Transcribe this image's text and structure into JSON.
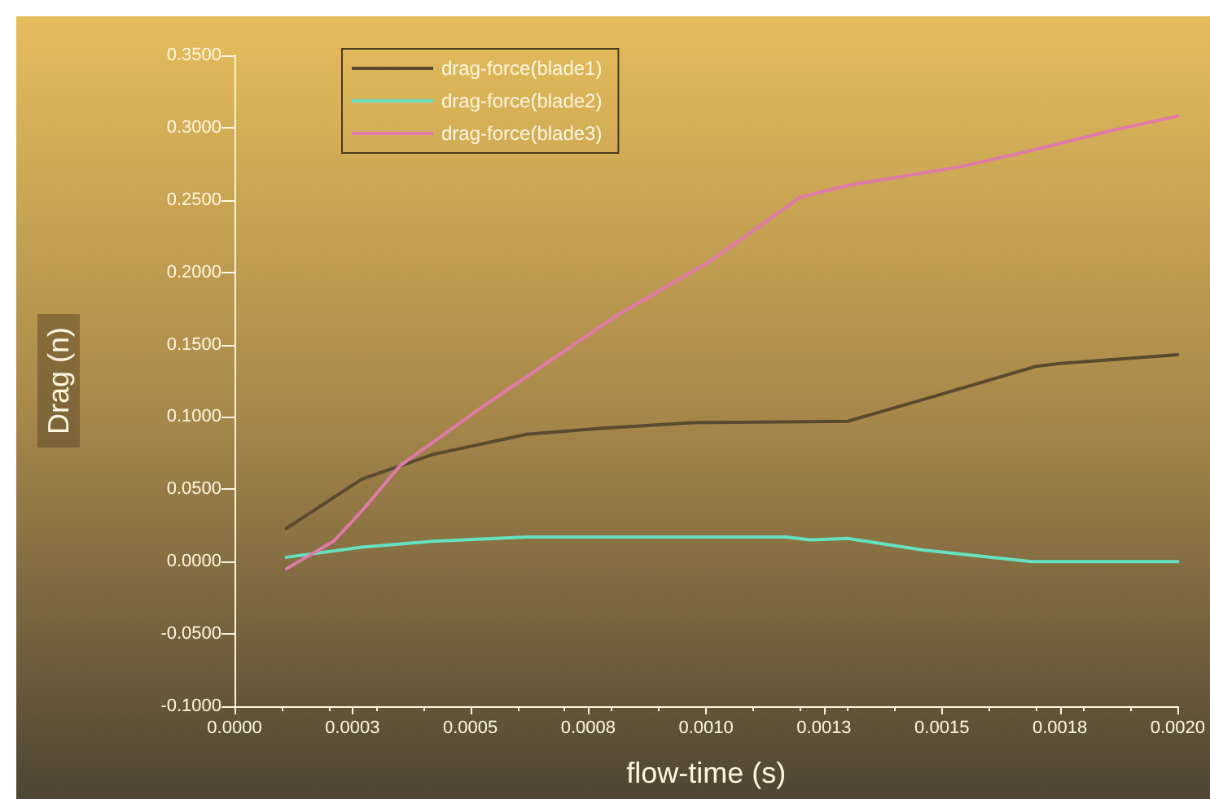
{
  "chart_data": {
    "type": "line",
    "xlabel": "flow-time (s)",
    "ylabel": "Drag (n)",
    "xlim": [
      0,
      0.002
    ],
    "xticks": [
      {
        "value": 0,
        "label": "0.0000"
      },
      {
        "value": 0.00025,
        "label": "0.0003"
      },
      {
        "value": 0.0005,
        "label": "0.0005"
      },
      {
        "value": 0.00075,
        "label": "0.0008"
      },
      {
        "value": 0.001,
        "label": "0.0010"
      },
      {
        "value": 0.00125,
        "label": "0.0013"
      },
      {
        "value": 0.0015,
        "label": "0.0015"
      },
      {
        "value": 0.00175,
        "label": "0.0018"
      },
      {
        "value": 0.002,
        "label": "0.0020"
      }
    ],
    "ylim": [
      -0.1,
      0.35
    ],
    "yticks": [
      {
        "value": -0.1,
        "label": "-0.1000"
      },
      {
        "value": -0.05,
        "label": "-0.0500"
      },
      {
        "value": 0,
        "label": "0.0000"
      },
      {
        "value": 0.05,
        "label": "0.0500"
      },
      {
        "value": 0.1,
        "label": "0.1000"
      },
      {
        "value": 0.15,
        "label": "0.1500"
      },
      {
        "value": 0.2,
        "label": "0.2000"
      },
      {
        "value": 0.25,
        "label": "0.2500"
      },
      {
        "value": 0.3,
        "label": "0.3000"
      },
      {
        "value": 0.35,
        "label": "0.3500"
      }
    ],
    "grid": false,
    "legend": "top left",
    "marker": "none",
    "line_style": "solid",
    "series": [
      {
        "name": "drag-force(blade1)",
        "color": "#5a4a2e",
        "x": [
          0.00011,
          0.00027,
          0.00042,
          0.00062,
          0.00077,
          0.00097,
          0.0013,
          0.00146,
          0.0017,
          0.00175,
          0.002
        ],
        "values": [
          0.023,
          0.057,
          0.074,
          0.088,
          0.092,
          0.096,
          0.097,
          0.112,
          0.135,
          0.137,
          0.143
        ]
      },
      {
        "name": "drag-force(blade2)",
        "color": "#66e0c0",
        "x": [
          0.00011,
          0.00027,
          0.00042,
          0.00062,
          0.00117,
          0.00122,
          0.0013,
          0.00146,
          0.00169,
          0.002
        ],
        "values": [
          0.003,
          0.01,
          0.014,
          0.017,
          0.017,
          0.015,
          0.016,
          0.008,
          0,
          0
        ]
      },
      {
        "name": "drag-force(blade3)",
        "color": "#e07aa8",
        "x": [
          0.00011,
          0.00021,
          0.00027,
          0.00035,
          0.00053,
          0.00081,
          0.00101,
          0.0012,
          0.0013,
          0.00154,
          0.0017,
          0.00186,
          0.002
        ],
        "values": [
          -0.005,
          0.014,
          0.035,
          0.066,
          0.108,
          0.17,
          0.208,
          0.252,
          0.26,
          0.273,
          0.285,
          0.298,
          0.308
        ]
      }
    ]
  }
}
